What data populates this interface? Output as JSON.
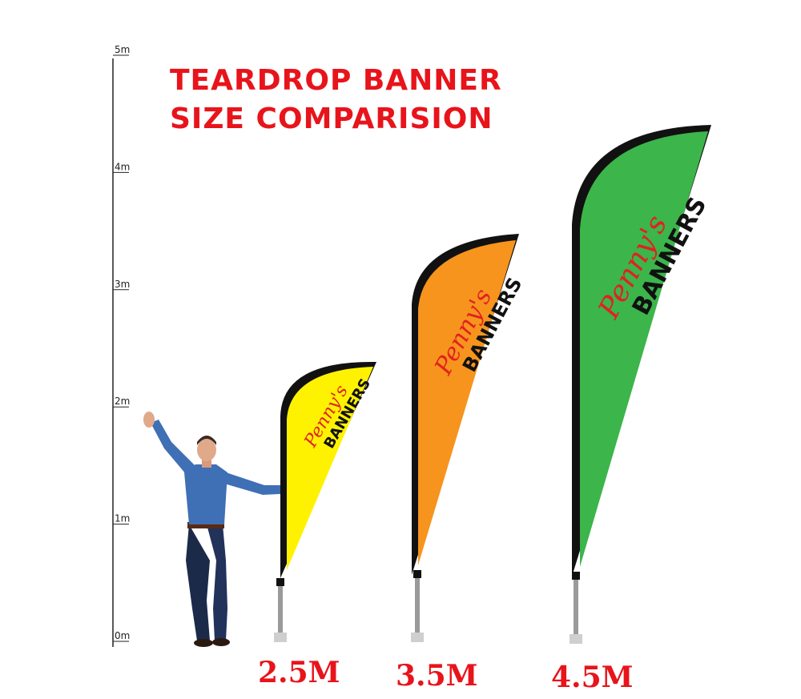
{
  "title": {
    "line1": "TEARDROP BANNER",
    "line2": "SIZE COMPARISION"
  },
  "scale": {
    "ticks": [
      {
        "label": "0m",
        "value": 0
      },
      {
        "label": "1m",
        "value": 1
      },
      {
        "label": "2m",
        "value": 2
      },
      {
        "label": "3m",
        "value": 3
      },
      {
        "label": "4m",
        "value": 4
      },
      {
        "label": "5m",
        "value": 5
      }
    ]
  },
  "banners": [
    {
      "size_label": "2.5M",
      "color": "#fff200",
      "brand_script": "Penny's",
      "brand_block": "BANNERS"
    },
    {
      "size_label": "3.5M",
      "color": "#f7941d",
      "brand_script": "Penny's",
      "brand_block": "BANNERS"
    },
    {
      "size_label": "4.5M",
      "color": "#3cb54a",
      "brand_script": "Penny's",
      "brand_block": "BANNERS"
    }
  ],
  "colors": {
    "title": "#e8141b",
    "pole": "#111111",
    "person_shirt": "#3f6fb5",
    "person_jeans": "#1c2a4a"
  }
}
